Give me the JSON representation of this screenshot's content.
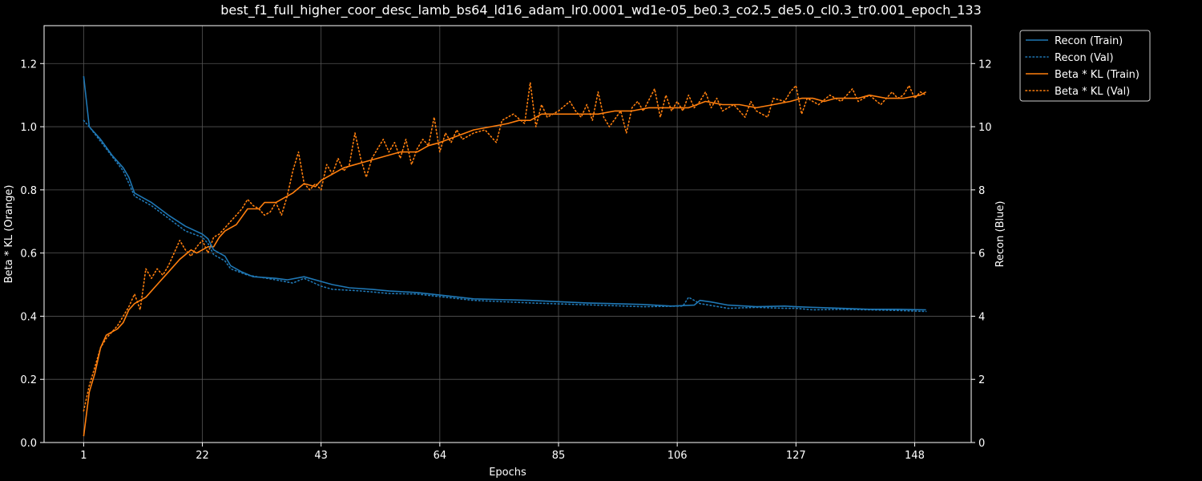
{
  "chart_data": {
    "type": "line",
    "title": "best_f1_full_higher_coor_desc_lamb_bs64_ld16_adam_lr0.0001_wd1e-05_be0.3_co2.5_de5.0_cl0.3_tr0.001_epoch_133",
    "xlabel": "Epochs",
    "ylabel_left": "Beta * KL (Orange)",
    "ylabel_right": "Recon (Blue)",
    "xlim": [
      -6,
      158
    ],
    "ylim_left": [
      0,
      1.32
    ],
    "ylim_right": [
      0,
      13.2
    ],
    "x_ticks": [
      "1",
      "22",
      "43",
      "64",
      "85",
      "106",
      "127",
      "148"
    ],
    "y_ticks_left": [
      "0.0",
      "0.2",
      "0.4",
      "0.6",
      "0.8",
      "1.0",
      "1.2"
    ],
    "y_ticks_right": [
      "0",
      "2",
      "4",
      "6",
      "8",
      "10",
      "12"
    ],
    "grid": true,
    "legend_position": "outside-top-right",
    "colors": {
      "recon": "#1f77b4",
      "kl": "#ff7f0e",
      "background": "#000000",
      "grid": "#555555"
    },
    "series": [
      {
        "name": "Recon (Train)",
        "axis": "right",
        "style": "solid",
        "color": "#1f77b4",
        "points": [
          [
            1,
            11.6
          ],
          [
            2,
            10.0
          ],
          [
            4,
            9.6
          ],
          [
            6,
            9.1
          ],
          [
            8,
            8.7
          ],
          [
            9,
            8.4
          ],
          [
            10,
            7.9
          ],
          [
            13,
            7.6
          ],
          [
            16,
            7.2
          ],
          [
            19,
            6.85
          ],
          [
            22,
            6.6
          ],
          [
            23,
            6.45
          ],
          [
            24,
            6.1
          ],
          [
            26,
            5.9
          ],
          [
            27,
            5.6
          ],
          [
            29,
            5.4
          ],
          [
            31,
            5.25
          ],
          [
            35,
            5.2
          ],
          [
            37,
            5.15
          ],
          [
            40,
            5.25
          ],
          [
            43,
            5.1
          ],
          [
            45,
            5.0
          ],
          [
            48,
            4.9
          ],
          [
            52,
            4.85
          ],
          [
            55,
            4.8
          ],
          [
            60,
            4.75
          ],
          [
            65,
            4.65
          ],
          [
            70,
            4.55
          ],
          [
            80,
            4.5
          ],
          [
            90,
            4.42
          ],
          [
            100,
            4.37
          ],
          [
            105,
            4.32
          ],
          [
            109,
            4.35
          ],
          [
            110,
            4.5
          ],
          [
            112,
            4.45
          ],
          [
            115,
            4.35
          ],
          [
            120,
            4.3
          ],
          [
            125,
            4.32
          ],
          [
            127,
            4.3
          ],
          [
            130,
            4.28
          ],
          [
            135,
            4.25
          ],
          [
            140,
            4.22
          ],
          [
            145,
            4.22
          ],
          [
            150,
            4.2
          ]
        ]
      },
      {
        "name": "Recon (Val)",
        "axis": "right",
        "style": "dotted",
        "color": "#1f77b4",
        "points": [
          [
            1,
            10.2
          ],
          [
            2,
            10.0
          ],
          [
            5,
            9.3
          ],
          [
            8,
            8.6
          ],
          [
            10,
            7.8
          ],
          [
            13,
            7.5
          ],
          [
            16,
            7.1
          ],
          [
            19,
            6.7
          ],
          [
            22,
            6.5
          ],
          [
            23,
            6.3
          ],
          [
            24,
            5.95
          ],
          [
            26,
            5.75
          ],
          [
            27,
            5.5
          ],
          [
            30,
            5.3
          ],
          [
            35,
            5.15
          ],
          [
            38,
            5.05
          ],
          [
            40,
            5.2
          ],
          [
            43,
            4.95
          ],
          [
            45,
            4.85
          ],
          [
            50,
            4.8
          ],
          [
            55,
            4.72
          ],
          [
            60,
            4.7
          ],
          [
            65,
            4.6
          ],
          [
            70,
            4.5
          ],
          [
            80,
            4.42
          ],
          [
            90,
            4.36
          ],
          [
            100,
            4.3
          ],
          [
            107,
            4.32
          ],
          [
            108,
            4.6
          ],
          [
            110,
            4.4
          ],
          [
            115,
            4.25
          ],
          [
            120,
            4.28
          ],
          [
            125,
            4.25
          ],
          [
            127,
            4.25
          ],
          [
            130,
            4.2
          ],
          [
            135,
            4.22
          ],
          [
            140,
            4.2
          ],
          [
            145,
            4.18
          ],
          [
            150,
            4.15
          ]
        ]
      },
      {
        "name": "Beta * KL (Train)",
        "axis": "left",
        "style": "solid",
        "color": "#ff7f0e",
        "points": [
          [
            1,
            0.02
          ],
          [
            2,
            0.16
          ],
          [
            3,
            0.22
          ],
          [
            4,
            0.3
          ],
          [
            5,
            0.34
          ],
          [
            6,
            0.35
          ],
          [
            7,
            0.36
          ],
          [
            8,
            0.38
          ],
          [
            9,
            0.42
          ],
          [
            10,
            0.44
          ],
          [
            12,
            0.46
          ],
          [
            14,
            0.5
          ],
          [
            16,
            0.54
          ],
          [
            18,
            0.58
          ],
          [
            20,
            0.61
          ],
          [
            21,
            0.6
          ],
          [
            23,
            0.62
          ],
          [
            24,
            0.62
          ],
          [
            25,
            0.65
          ],
          [
            26,
            0.67
          ],
          [
            28,
            0.69
          ],
          [
            30,
            0.74
          ],
          [
            32,
            0.74
          ],
          [
            33,
            0.76
          ],
          [
            35,
            0.76
          ],
          [
            37,
            0.78
          ],
          [
            38,
            0.79
          ],
          [
            40,
            0.82
          ],
          [
            42,
            0.81
          ],
          [
            43,
            0.83
          ],
          [
            45,
            0.85
          ],
          [
            47,
            0.87
          ],
          [
            49,
            0.88
          ],
          [
            51,
            0.89
          ],
          [
            53,
            0.9
          ],
          [
            55,
            0.91
          ],
          [
            57,
            0.92
          ],
          [
            60,
            0.92
          ],
          [
            62,
            0.94
          ],
          [
            64,
            0.95
          ],
          [
            67,
            0.97
          ],
          [
            70,
            0.99
          ],
          [
            73,
            1.0
          ],
          [
            76,
            1.01
          ],
          [
            78,
            1.02
          ],
          [
            80,
            1.02
          ],
          [
            82,
            1.04
          ],
          [
            85,
            1.04
          ],
          [
            88,
            1.04
          ],
          [
            92,
            1.04
          ],
          [
            95,
            1.05
          ],
          [
            98,
            1.05
          ],
          [
            101,
            1.06
          ],
          [
            104,
            1.06
          ],
          [
            106,
            1.06
          ],
          [
            108,
            1.06
          ],
          [
            111,
            1.08
          ],
          [
            114,
            1.07
          ],
          [
            117,
            1.07
          ],
          [
            120,
            1.06
          ],
          [
            123,
            1.07
          ],
          [
            126,
            1.08
          ],
          [
            128,
            1.09
          ],
          [
            130,
            1.09
          ],
          [
            132,
            1.08
          ],
          [
            134,
            1.09
          ],
          [
            136,
            1.09
          ],
          [
            138,
            1.09
          ],
          [
            140,
            1.1
          ],
          [
            143,
            1.09
          ],
          [
            146,
            1.09
          ],
          [
            149,
            1.1
          ],
          [
            150,
            1.11
          ]
        ]
      },
      {
        "name": "Beta * KL (Val)",
        "axis": "left",
        "style": "dotted",
        "color": "#ff7f0e",
        "points": [
          [
            1,
            0.1
          ],
          [
            2,
            0.18
          ],
          [
            3,
            0.24
          ],
          [
            4,
            0.3
          ],
          [
            5,
            0.33
          ],
          [
            6,
            0.35
          ],
          [
            7,
            0.37
          ],
          [
            8,
            0.4
          ],
          [
            9,
            0.43
          ],
          [
            10,
            0.47
          ],
          [
            11,
            0.42
          ],
          [
            12,
            0.55
          ],
          [
            13,
            0.52
          ],
          [
            14,
            0.55
          ],
          [
            15,
            0.53
          ],
          [
            16,
            0.56
          ],
          [
            17,
            0.6
          ],
          [
            18,
            0.64
          ],
          [
            19,
            0.61
          ],
          [
            20,
            0.59
          ],
          [
            21,
            0.62
          ],
          [
            22,
            0.64
          ],
          [
            23,
            0.6
          ],
          [
            24,
            0.65
          ],
          [
            25,
            0.66
          ],
          [
            26,
            0.68
          ],
          [
            27,
            0.7
          ],
          [
            28,
            0.72
          ],
          [
            29,
            0.74
          ],
          [
            30,
            0.77
          ],
          [
            31,
            0.75
          ],
          [
            32,
            0.74
          ],
          [
            33,
            0.72
          ],
          [
            34,
            0.73
          ],
          [
            35,
            0.76
          ],
          [
            36,
            0.72
          ],
          [
            37,
            0.78
          ],
          [
            38,
            0.86
          ],
          [
            39,
            0.92
          ],
          [
            40,
            0.82
          ],
          [
            41,
            0.8
          ],
          [
            42,
            0.82
          ],
          [
            43,
            0.8
          ],
          [
            44,
            0.88
          ],
          [
            45,
            0.85
          ],
          [
            46,
            0.9
          ],
          [
            47,
            0.86
          ],
          [
            48,
            0.88
          ],
          [
            49,
            0.98
          ],
          [
            50,
            0.9
          ],
          [
            51,
            0.84
          ],
          [
            52,
            0.9
          ],
          [
            53,
            0.93
          ],
          [
            54,
            0.96
          ],
          [
            55,
            0.92
          ],
          [
            56,
            0.95
          ],
          [
            57,
            0.9
          ],
          [
            58,
            0.96
          ],
          [
            59,
            0.88
          ],
          [
            60,
            0.93
          ],
          [
            61,
            0.96
          ],
          [
            62,
            0.94
          ],
          [
            63,
            1.03
          ],
          [
            64,
            0.92
          ],
          [
            65,
            0.98
          ],
          [
            66,
            0.95
          ],
          [
            67,
            0.99
          ],
          [
            68,
            0.96
          ],
          [
            70,
            0.98
          ],
          [
            72,
            0.99
          ],
          [
            74,
            0.95
          ],
          [
            75,
            1.02
          ],
          [
            77,
            1.04
          ],
          [
            79,
            1.01
          ],
          [
            80,
            1.14
          ],
          [
            81,
            1.0
          ],
          [
            82,
            1.07
          ],
          [
            83,
            1.03
          ],
          [
            85,
            1.05
          ],
          [
            87,
            1.08
          ],
          [
            88,
            1.05
          ],
          [
            89,
            1.03
          ],
          [
            90,
            1.07
          ],
          [
            91,
            1.02
          ],
          [
            92,
            1.11
          ],
          [
            93,
            1.03
          ],
          [
            94,
            1.0
          ],
          [
            96,
            1.05
          ],
          [
            97,
            0.98
          ],
          [
            98,
            1.06
          ],
          [
            99,
            1.08
          ],
          [
            100,
            1.05
          ],
          [
            102,
            1.12
          ],
          [
            103,
            1.03
          ],
          [
            104,
            1.1
          ],
          [
            105,
            1.05
          ],
          [
            106,
            1.08
          ],
          [
            107,
            1.05
          ],
          [
            108,
            1.1
          ],
          [
            109,
            1.06
          ],
          [
            110,
            1.08
          ],
          [
            111,
            1.11
          ],
          [
            112,
            1.06
          ],
          [
            113,
            1.09
          ],
          [
            114,
            1.05
          ],
          [
            116,
            1.07
          ],
          [
            118,
            1.03
          ],
          [
            119,
            1.08
          ],
          [
            120,
            1.05
          ],
          [
            122,
            1.03
          ],
          [
            123,
            1.09
          ],
          [
            125,
            1.08
          ],
          [
            126,
            1.11
          ],
          [
            127,
            1.13
          ],
          [
            128,
            1.04
          ],
          [
            129,
            1.09
          ],
          [
            131,
            1.07
          ],
          [
            133,
            1.1
          ],
          [
            135,
            1.08
          ],
          [
            136,
            1.1
          ],
          [
            137,
            1.12
          ],
          [
            138,
            1.08
          ],
          [
            140,
            1.1
          ],
          [
            142,
            1.07
          ],
          [
            144,
            1.11
          ],
          [
            145,
            1.09
          ],
          [
            146,
            1.1
          ],
          [
            147,
            1.13
          ],
          [
            148,
            1.09
          ],
          [
            149,
            1.11
          ],
          [
            150,
            1.1
          ]
        ]
      }
    ]
  }
}
